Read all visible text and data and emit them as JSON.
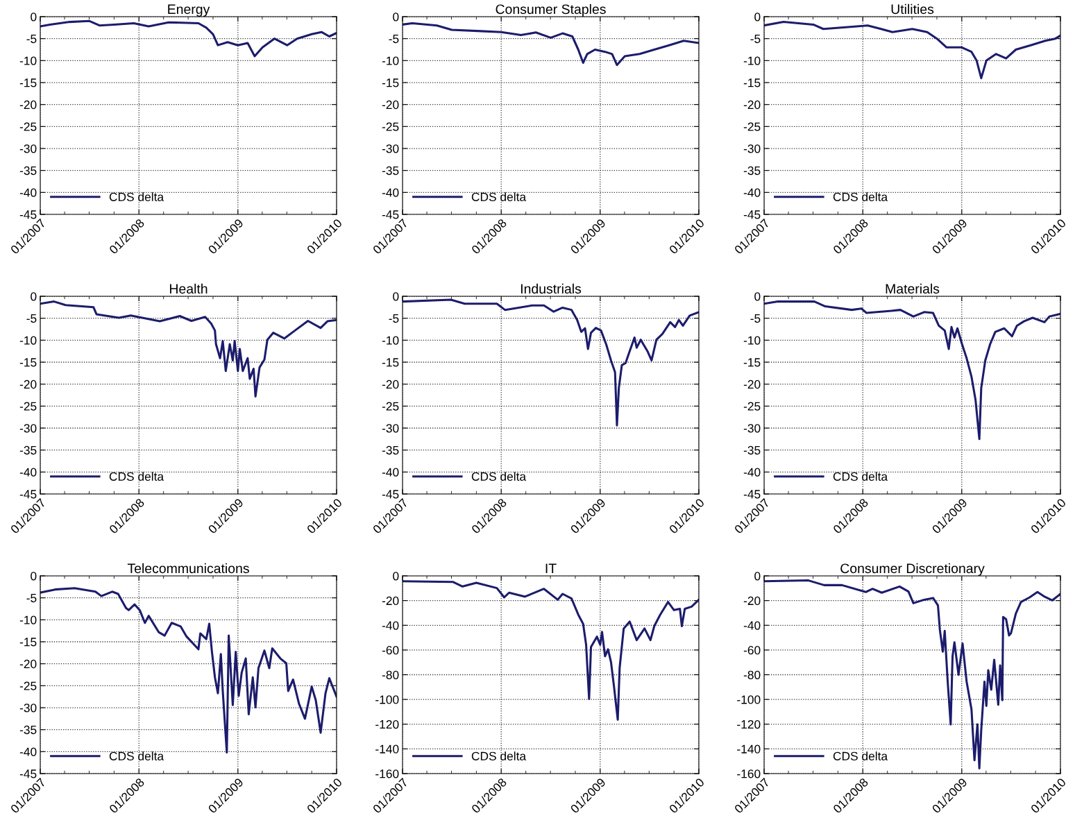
{
  "chart_data": [
    {
      "type": "line",
      "title": "Energy",
      "x": [
        "2007-01-01",
        "2007-02-06",
        "2007-04-20",
        "2007-07-02",
        "2007-08-08",
        "2007-10-01",
        "2007-12-13",
        "2008-02-06",
        "2008-04-20",
        "2008-08-08",
        "2008-09-06",
        "2008-10-01",
        "2008-10-19",
        "2008-11-24",
        "2009-01-01",
        "2009-02-06",
        "2009-03-04",
        "2009-04-02",
        "2009-05-16",
        "2009-07-02",
        "2009-08-08",
        "2009-10-01",
        "2009-11-06",
        "2009-12-05",
        "2010-01-01"
      ],
      "series": [
        {
          "name": "CDS delta",
          "color": "#1c1c6c",
          "values": [
            -2.2,
            -1.8,
            -1.2,
            -1.0,
            -2.0,
            -1.8,
            -1.5,
            -2.2,
            -1.3,
            -1.5,
            -2.5,
            -4.0,
            -6.5,
            -5.8,
            -6.5,
            -6.0,
            -9.0,
            -7.0,
            -5.0,
            -6.5,
            -5.0,
            -4.0,
            -3.5,
            -4.5,
            -3.7
          ]
        }
      ],
      "xlim": [
        "2007-01-01",
        "2010-01-01"
      ],
      "xticks": [
        {
          "value": "2007-01-01",
          "label": "01/2007"
        },
        {
          "value": "2007-04-01",
          "label": null
        },
        {
          "value": "2007-07-01",
          "label": null
        },
        {
          "value": "2007-10-01",
          "label": null
        },
        {
          "value": "2008-01-01",
          "label": "01/2008"
        },
        {
          "value": "2008-04-01",
          "label": null
        },
        {
          "value": "2008-07-01",
          "label": null
        },
        {
          "value": "2008-10-01",
          "label": null
        },
        {
          "value": "2009-01-01",
          "label": "01/2009"
        },
        {
          "value": "2009-04-01",
          "label": null
        },
        {
          "value": "2009-07-01",
          "label": null
        },
        {
          "value": "2009-10-01",
          "label": null
        },
        {
          "value": "2010-01-01",
          "label": "01/2010"
        }
      ],
      "ylim": [
        -45,
        0
      ],
      "yticks": [
        -45,
        -40,
        -35,
        -30,
        -25,
        -20,
        -15,
        -10,
        -5,
        0
      ],
      "grid": true,
      "legend": "bottom left"
    },
    {
      "type": "line",
      "title": "Consumer Staples",
      "x": [
        "2007-01-01",
        "2007-02-06",
        "2007-05-08",
        "2007-07-02",
        "2007-10-19",
        "2008-01-01",
        "2008-03-14",
        "2008-05-08",
        "2008-07-02",
        "2008-08-15",
        "2008-09-20",
        "2008-10-12",
        "2008-10-30",
        "2008-11-14",
        "2008-12-13",
        "2009-01-19",
        "2009-02-14",
        "2009-03-04",
        "2009-04-02",
        "2009-05-27",
        "2009-07-20",
        "2009-09-13",
        "2009-11-06",
        "2010-01-01"
      ],
      "series": [
        {
          "name": "CDS delta",
          "color": "#1c1c6c",
          "values": [
            -1.8,
            -1.5,
            -2.0,
            -3.0,
            -3.3,
            -3.5,
            -4.2,
            -3.6,
            -4.8,
            -3.8,
            -4.5,
            -7.5,
            -10.5,
            -8.5,
            -7.5,
            -8.0,
            -8.5,
            -11.0,
            -9.0,
            -8.5,
            -7.5,
            -6.5,
            -5.5,
            -6.0
          ]
        }
      ],
      "xlim": [
        "2007-01-01",
        "2010-01-01"
      ],
      "xticks": [
        {
          "value": "2007-01-01",
          "label": "01/2007"
        },
        {
          "value": "2007-04-01",
          "label": null
        },
        {
          "value": "2007-07-01",
          "label": null
        },
        {
          "value": "2007-10-01",
          "label": null
        },
        {
          "value": "2008-01-01",
          "label": "01/2008"
        },
        {
          "value": "2008-04-01",
          "label": null
        },
        {
          "value": "2008-07-01",
          "label": null
        },
        {
          "value": "2008-10-01",
          "label": null
        },
        {
          "value": "2009-01-01",
          "label": "01/2009"
        },
        {
          "value": "2009-04-01",
          "label": null
        },
        {
          "value": "2009-07-01",
          "label": null
        },
        {
          "value": "2009-10-01",
          "label": null
        },
        {
          "value": "2010-01-01",
          "label": "01/2010"
        }
      ],
      "ylim": [
        -45,
        0
      ],
      "yticks": [
        -45,
        -40,
        -35,
        -30,
        -25,
        -20,
        -15,
        -10,
        -5,
        0
      ],
      "grid": true,
      "legend": "bottom left"
    },
    {
      "type": "line",
      "title": "Utilities",
      "x": [
        "2007-01-01",
        "2007-03-14",
        "2007-07-02",
        "2007-08-08",
        "2007-11-24",
        "2008-01-19",
        "2008-04-20",
        "2008-07-02",
        "2008-08-26",
        "2008-10-01",
        "2008-11-06",
        "2009-01-01",
        "2009-02-06",
        "2009-02-25",
        "2009-03-14",
        "2009-04-02",
        "2009-05-08",
        "2009-06-14",
        "2009-07-20",
        "2009-09-13",
        "2009-11-06",
        "2009-12-13",
        "2010-01-01"
      ],
      "series": [
        {
          "name": "CDS delta",
          "color": "#1c1c6c",
          "values": [
            -2.0,
            -1.2,
            -1.8,
            -2.8,
            -2.3,
            -2.0,
            -3.5,
            -2.8,
            -3.5,
            -5.0,
            -7.0,
            -7.0,
            -8.0,
            -10.0,
            -14.0,
            -10.0,
            -8.5,
            -9.5,
            -7.5,
            -6.5,
            -5.5,
            -5.0,
            -4.3
          ]
        }
      ],
      "xlim": [
        "2007-01-01",
        "2010-01-01"
      ],
      "xticks": [
        {
          "value": "2007-01-01",
          "label": "01/2007"
        },
        {
          "value": "2007-04-01",
          "label": null
        },
        {
          "value": "2007-07-01",
          "label": null
        },
        {
          "value": "2007-10-01",
          "label": null
        },
        {
          "value": "2008-01-01",
          "label": "01/2008"
        },
        {
          "value": "2008-04-01",
          "label": null
        },
        {
          "value": "2008-07-01",
          "label": null
        },
        {
          "value": "2008-10-01",
          "label": null
        },
        {
          "value": "2009-01-01",
          "label": "01/2009"
        },
        {
          "value": "2009-04-01",
          "label": null
        },
        {
          "value": "2009-07-01",
          "label": null
        },
        {
          "value": "2009-10-01",
          "label": null
        },
        {
          "value": "2010-01-01",
          "label": "01/2010"
        }
      ],
      "ylim": [
        -45,
        0
      ],
      "yticks": [
        -45,
        -40,
        -35,
        -30,
        -25,
        -20,
        -15,
        -10,
        -5,
        0
      ],
      "grid": true,
      "legend": "bottom left"
    },
    {
      "type": "line",
      "title": "Health",
      "x": [
        "2007-01-01",
        "2007-02-21",
        "2007-04-05",
        "2007-07-17",
        "2007-07-28",
        "2007-10-19",
        "2007-12-02",
        "2008-03-18",
        "2008-05-31",
        "2008-07-13",
        "2008-09-02",
        "2008-09-24",
        "2008-10-08",
        "2008-10-12",
        "2008-10-27",
        "2008-11-06",
        "2008-11-17",
        "2008-12-02",
        "2008-12-13",
        "2008-12-20",
        "2009-01-01",
        "2009-01-08",
        "2009-01-19",
        "2009-02-06",
        "2009-02-14",
        "2009-02-28",
        "2009-03-07",
        "2009-03-22",
        "2009-04-09",
        "2009-04-20",
        "2009-05-12",
        "2009-06-22",
        "2009-07-31",
        "2009-09-17",
        "2009-11-03",
        "2009-11-28",
        "2010-01-01"
      ],
      "series": [
        {
          "name": "CDS delta",
          "color": "#1c1c6c",
          "values": [
            -1.7,
            -1.2,
            -2.0,
            -2.5,
            -4.1,
            -4.9,
            -4.4,
            -5.7,
            -4.5,
            -5.6,
            -4.7,
            -6.2,
            -7.8,
            -10.9,
            -14.1,
            -10.2,
            -17.0,
            -10.9,
            -14.6,
            -10.2,
            -17.0,
            -12.0,
            -17.0,
            -14.1,
            -18.8,
            -16.5,
            -22.8,
            -16.2,
            -14.4,
            -9.9,
            -8.3,
            -9.6,
            -7.8,
            -5.6,
            -7.2,
            -5.7,
            -5.4
          ]
        }
      ],
      "xlim": [
        "2007-01-01",
        "2010-01-01"
      ],
      "xticks": [
        {
          "value": "2007-01-01",
          "label": "01/2007"
        },
        {
          "value": "2007-04-01",
          "label": null
        },
        {
          "value": "2007-07-01",
          "label": null
        },
        {
          "value": "2007-10-01",
          "label": null
        },
        {
          "value": "2008-01-01",
          "label": "01/2008"
        },
        {
          "value": "2008-04-01",
          "label": null
        },
        {
          "value": "2008-07-01",
          "label": null
        },
        {
          "value": "2008-10-01",
          "label": null
        },
        {
          "value": "2009-01-01",
          "label": "01/2009"
        },
        {
          "value": "2009-04-01",
          "label": null
        },
        {
          "value": "2009-07-01",
          "label": null
        },
        {
          "value": "2009-10-01",
          "label": null
        },
        {
          "value": "2010-01-01",
          "label": "01/2010"
        }
      ],
      "ylim": [
        -45,
        0
      ],
      "yticks": [
        -45,
        -40,
        -35,
        -30,
        -25,
        -20,
        -15,
        -10,
        -5,
        0
      ],
      "grid": true,
      "legend": "bottom left"
    },
    {
      "type": "line",
      "title": "Industrials",
      "x": [
        "2007-01-01",
        "2007-06-29",
        "2007-08-19",
        "2007-12-16",
        "2008-01-15",
        "2008-04-24",
        "2008-06-07",
        "2008-07-13",
        "2008-08-15",
        "2008-09-17",
        "2008-10-08",
        "2008-10-23",
        "2008-11-06",
        "2008-11-17",
        "2008-11-28",
        "2008-12-16",
        "2009-01-04",
        "2009-01-23",
        "2009-02-10",
        "2009-02-25",
        "2009-03-04",
        "2009-03-11",
        "2009-03-22",
        "2009-04-05",
        "2009-04-20",
        "2009-05-08",
        "2009-05-16",
        "2009-05-31",
        "2009-06-25",
        "2009-07-10",
        "2009-07-28",
        "2009-08-19",
        "2009-09-17",
        "2009-10-05",
        "2009-10-19",
        "2009-11-03",
        "2009-11-28",
        "2010-01-01"
      ],
      "series": [
        {
          "name": "CDS delta",
          "color": "#1c1c6c",
          "values": [
            -1.2,
            -0.8,
            -1.7,
            -1.7,
            -3.1,
            -2.1,
            -2.1,
            -3.5,
            -2.6,
            -3.1,
            -5.4,
            -8.1,
            -7.3,
            -12.0,
            -8.3,
            -7.2,
            -7.8,
            -10.9,
            -14.6,
            -17.3,
            -29.4,
            -20.9,
            -15.7,
            -15.2,
            -12.5,
            -9.4,
            -11.7,
            -9.9,
            -12.5,
            -14.6,
            -9.9,
            -8.6,
            -5.9,
            -7.0,
            -5.4,
            -6.7,
            -4.4,
            -3.6
          ]
        }
      ],
      "xlim": [
        "2007-01-01",
        "2010-01-01"
      ],
      "xticks": [
        {
          "value": "2007-01-01",
          "label": "01/2007"
        },
        {
          "value": "2007-04-01",
          "label": null
        },
        {
          "value": "2007-07-01",
          "label": null
        },
        {
          "value": "2007-10-01",
          "label": null
        },
        {
          "value": "2008-01-01",
          "label": "01/2008"
        },
        {
          "value": "2008-04-01",
          "label": null
        },
        {
          "value": "2008-07-01",
          "label": null
        },
        {
          "value": "2008-10-01",
          "label": null
        },
        {
          "value": "2009-01-01",
          "label": "01/2009"
        },
        {
          "value": "2009-04-01",
          "label": null
        },
        {
          "value": "2009-07-01",
          "label": null
        },
        {
          "value": "2009-10-01",
          "label": null
        },
        {
          "value": "2010-01-01",
          "label": "01/2010"
        }
      ],
      "ylim": [
        -45,
        0
      ],
      "yticks": [
        -45,
        -40,
        -35,
        -30,
        -25,
        -20,
        -15,
        -10,
        -5,
        0
      ],
      "grid": true,
      "legend": "bottom left"
    },
    {
      "type": "line",
      "title": "Materials",
      "x": [
        "2007-01-01",
        "2007-02-21",
        "2007-07-06",
        "2007-08-15",
        "2007-11-21",
        "2007-12-27",
        "2008-01-15",
        "2008-04-16",
        "2008-05-19",
        "2008-07-06",
        "2008-08-15",
        "2008-09-17",
        "2008-10-08",
        "2008-10-30",
        "2008-11-14",
        "2008-11-24",
        "2008-12-05",
        "2008-12-16",
        "2009-01-01",
        "2009-01-19",
        "2009-02-06",
        "2009-02-21",
        "2009-03-07",
        "2009-03-14",
        "2009-03-29",
        "2009-04-16",
        "2009-05-05",
        "2009-06-07",
        "2009-07-06",
        "2009-07-24",
        "2009-08-19",
        "2009-09-20",
        "2009-11-03",
        "2009-11-21",
        "2010-01-01"
      ],
      "series": [
        {
          "name": "CDS delta",
          "color": "#1c1c6c",
          "values": [
            -1.7,
            -1.2,
            -1.2,
            -2.3,
            -3.1,
            -2.8,
            -3.8,
            -3.3,
            -3.1,
            -4.6,
            -3.6,
            -3.8,
            -6.7,
            -7.8,
            -12.0,
            -7.0,
            -9.4,
            -7.3,
            -10.7,
            -14.1,
            -18.3,
            -23.6,
            -32.5,
            -20.9,
            -14.6,
            -10.9,
            -8.1,
            -7.3,
            -9.1,
            -6.7,
            -5.7,
            -4.9,
            -5.9,
            -4.6,
            -4.0
          ]
        }
      ],
      "xlim": [
        "2007-01-01",
        "2010-01-01"
      ],
      "xticks": [
        {
          "value": "2007-01-01",
          "label": "01/2007"
        },
        {
          "value": "2007-04-01",
          "label": null
        },
        {
          "value": "2007-07-01",
          "label": null
        },
        {
          "value": "2007-10-01",
          "label": null
        },
        {
          "value": "2008-01-01",
          "label": "01/2008"
        },
        {
          "value": "2008-04-01",
          "label": null
        },
        {
          "value": "2008-07-01",
          "label": null
        },
        {
          "value": "2008-10-01",
          "label": null
        },
        {
          "value": "2009-01-01",
          "label": "01/2009"
        },
        {
          "value": "2009-04-01",
          "label": null
        },
        {
          "value": "2009-07-01",
          "label": null
        },
        {
          "value": "2009-10-01",
          "label": null
        },
        {
          "value": "2010-01-01",
          "label": "01/2010"
        }
      ],
      "ylim": [
        -45,
        0
      ],
      "yticks": [
        -45,
        -40,
        -35,
        -30,
        -25,
        -20,
        -15,
        -10,
        -5,
        0
      ],
      "grid": true,
      "legend": "bottom left"
    },
    {
      "type": "line",
      "title": "Telecommunications",
      "x": [
        "2007-01-01",
        "2007-02-25",
        "2007-05-08",
        "2007-07-24",
        "2007-08-15",
        "2007-09-24",
        "2007-10-16",
        "2007-11-14",
        "2007-11-24",
        "2007-12-16",
        "2008-01-04",
        "2008-01-23",
        "2008-02-06",
        "2008-03-14",
        "2008-04-05",
        "2008-05-01",
        "2008-06-03",
        "2008-06-25",
        "2008-08-08",
        "2008-08-15",
        "2008-09-06",
        "2008-09-17",
        "2008-09-27",
        "2008-10-08",
        "2008-10-19",
        "2008-10-30",
        "2008-11-06",
        "2008-11-21",
        "2008-11-28",
        "2008-12-13",
        "2008-12-24",
        "2009-01-04",
        "2009-01-15",
        "2009-01-30",
        "2009-02-10",
        "2009-02-25",
        "2009-03-07",
        "2009-03-18",
        "2009-04-09",
        "2009-04-27",
        "2009-05-08",
        "2009-06-07",
        "2009-06-29",
        "2009-07-06",
        "2009-07-24",
        "2009-08-15",
        "2009-09-06",
        "2009-10-01",
        "2009-10-16",
        "2009-11-03",
        "2009-11-21",
        "2009-12-05",
        "2010-01-01"
      ],
      "series": [
        {
          "name": "CDS delta",
          "color": "#1c1c6c",
          "values": [
            -3.8,
            -3.1,
            -2.8,
            -3.6,
            -4.6,
            -3.6,
            -4.1,
            -7.3,
            -7.8,
            -6.5,
            -7.8,
            -10.7,
            -9.1,
            -12.8,
            -13.6,
            -10.7,
            -11.5,
            -13.8,
            -16.7,
            -13.1,
            -14.4,
            -10.9,
            -17.3,
            -23.1,
            -26.7,
            -17.8,
            -26.2,
            -40.2,
            -13.6,
            -29.4,
            -17.3,
            -27.3,
            -22.0,
            -18.8,
            -31.5,
            -23.1,
            -29.9,
            -21.0,
            -17.0,
            -21.0,
            -16.5,
            -18.8,
            -19.9,
            -26.2,
            -23.6,
            -29.1,
            -32.5,
            -25.2,
            -28.3,
            -35.7,
            -26.7,
            -23.3,
            -27.5
          ]
        }
      ],
      "xlim": [
        "2007-01-01",
        "2010-01-01"
      ],
      "xticks": [
        {
          "value": "2007-01-01",
          "label": "01/2007"
        },
        {
          "value": "2007-04-01",
          "label": null
        },
        {
          "value": "2007-07-01",
          "label": null
        },
        {
          "value": "2007-10-01",
          "label": null
        },
        {
          "value": "2008-01-01",
          "label": "01/2008"
        },
        {
          "value": "2008-04-01",
          "label": null
        },
        {
          "value": "2008-07-01",
          "label": null
        },
        {
          "value": "2008-10-01",
          "label": null
        },
        {
          "value": "2009-01-01",
          "label": "01/2009"
        },
        {
          "value": "2009-04-01",
          "label": null
        },
        {
          "value": "2009-07-01",
          "label": null
        },
        {
          "value": "2009-10-01",
          "label": null
        },
        {
          "value": "2010-01-01",
          "label": "01/2010"
        }
      ],
      "ylim": [
        -45,
        0
      ],
      "yticks": [
        -45,
        -40,
        -35,
        -30,
        -25,
        -20,
        -15,
        -10,
        -5,
        0
      ],
      "grid": true,
      "legend": "bottom left"
    },
    {
      "type": "line",
      "title": "IT",
      "x": [
        "2007-01-01",
        "2007-07-06",
        "2007-08-11",
        "2007-10-01",
        "2007-12-16",
        "2008-01-12",
        "2008-01-30",
        "2008-03-29",
        "2008-06-07",
        "2008-07-28",
        "2008-08-15",
        "2008-09-17",
        "2008-10-12",
        "2008-10-30",
        "2008-11-10",
        "2008-11-21",
        "2008-11-28",
        "2008-12-20",
        "2009-01-01",
        "2009-01-08",
        "2009-01-19",
        "2009-01-30",
        "2009-02-10",
        "2009-02-21",
        "2009-03-07",
        "2009-03-14",
        "2009-03-29",
        "2009-04-20",
        "2009-05-16",
        "2009-06-14",
        "2009-07-06",
        "2009-07-20",
        "2009-08-11",
        "2009-09-09",
        "2009-10-01",
        "2009-10-23",
        "2009-10-30",
        "2009-11-10",
        "2009-12-05",
        "2010-01-01"
      ],
      "series": [
        {
          "name": "CDS delta",
          "color": "#1c1c6c",
          "values": [
            -4.3,
            -4.9,
            -8.6,
            -5.6,
            -9.9,
            -17.4,
            -13.6,
            -16.8,
            -10.5,
            -19.3,
            -14.6,
            -18.3,
            -31.4,
            -38.9,
            -55.7,
            -99.6,
            -57.6,
            -49.2,
            -55.7,
            -45.4,
            -65.0,
            -59.4,
            -69.7,
            -89.3,
            -116.4,
            -74.4,
            -42.6,
            -37.0,
            -52.0,
            -42.6,
            -52.0,
            -40.7,
            -31.4,
            -21.1,
            -27.7,
            -26.7,
            -40.7,
            -26.7,
            -24.9,
            -19.3
          ]
        }
      ],
      "xlim": [
        "2007-01-01",
        "2010-01-01"
      ],
      "xticks": [
        {
          "value": "2007-01-01",
          "label": "01/2007"
        },
        {
          "value": "2007-04-01",
          "label": null
        },
        {
          "value": "2007-07-01",
          "label": null
        },
        {
          "value": "2007-10-01",
          "label": null
        },
        {
          "value": "2008-01-01",
          "label": "01/2008"
        },
        {
          "value": "2008-04-01",
          "label": null
        },
        {
          "value": "2008-07-01",
          "label": null
        },
        {
          "value": "2008-10-01",
          "label": null
        },
        {
          "value": "2009-01-01",
          "label": "01/2009"
        },
        {
          "value": "2009-04-01",
          "label": null
        },
        {
          "value": "2009-07-01",
          "label": null
        },
        {
          "value": "2009-10-01",
          "label": null
        },
        {
          "value": "2010-01-01",
          "label": "01/2010"
        }
      ],
      "ylim": [
        -160,
        0
      ],
      "yticks": [
        -160,
        -140,
        -120,
        -100,
        -80,
        -60,
        -40,
        -20,
        0
      ],
      "grid": true,
      "legend": "bottom left"
    },
    {
      "type": "line",
      "title": "Consumer Discretionary",
      "x": [
        "2007-01-01",
        "2007-06-14",
        "2007-08-11",
        "2007-10-16",
        "2008-01-12",
        "2008-02-06",
        "2008-03-11",
        "2008-05-16",
        "2008-06-18",
        "2008-07-06",
        "2008-08-15",
        "2008-09-17",
        "2008-10-05",
        "2008-10-12",
        "2008-10-23",
        "2008-10-30",
        "2008-11-10",
        "2008-11-21",
        "2008-11-28",
        "2008-12-05",
        "2008-12-20",
        "2009-01-04",
        "2009-01-19",
        "2009-02-06",
        "2009-02-17",
        "2009-02-28",
        "2009-03-07",
        "2009-03-14",
        "2009-03-26",
        "2009-04-02",
        "2009-04-09",
        "2009-04-20",
        "2009-05-01",
        "2009-05-16",
        "2009-05-23",
        "2009-05-31",
        "2009-06-03",
        "2009-06-14",
        "2009-06-25",
        "2009-07-02",
        "2009-07-20",
        "2009-08-08",
        "2009-09-09",
        "2009-10-08",
        "2009-11-03",
        "2009-12-02",
        "2010-01-01"
      ],
      "series": [
        {
          "name": "CDS delta",
          "color": "#1c1c6c",
          "values": [
            -4.3,
            -3.7,
            -7.5,
            -7.5,
            -13.1,
            -10.5,
            -13.6,
            -8.6,
            -12.7,
            -22.1,
            -19.3,
            -17.9,
            -23.9,
            -43.6,
            -61.3,
            -44.5,
            -85.6,
            -120.2,
            -65.0,
            -53.8,
            -80.0,
            -54.8,
            -85.6,
            -108.0,
            -149.2,
            -120.2,
            -155.8,
            -124.9,
            -85.6,
            -105.2,
            -76.3,
            -92.1,
            -67.9,
            -104.3,
            -72.5,
            -100.6,
            -33.3,
            -35.1,
            -48.2,
            -46.4,
            -30.5,
            -21.1,
            -17.4,
            -13.1,
            -16.8,
            -19.8,
            -14.6
          ]
        }
      ],
      "xlim": [
        "2007-01-01",
        "2010-01-01"
      ],
      "xticks": [
        {
          "value": "2007-01-01",
          "label": "01/2007"
        },
        {
          "value": "2007-04-01",
          "label": null
        },
        {
          "value": "2007-07-01",
          "label": null
        },
        {
          "value": "2007-10-01",
          "label": null
        },
        {
          "value": "2008-01-01",
          "label": "01/2008"
        },
        {
          "value": "2008-04-01",
          "label": null
        },
        {
          "value": "2008-07-01",
          "label": null
        },
        {
          "value": "2008-10-01",
          "label": null
        },
        {
          "value": "2009-01-01",
          "label": "01/2009"
        },
        {
          "value": "2009-04-01",
          "label": null
        },
        {
          "value": "2009-07-01",
          "label": null
        },
        {
          "value": "2009-10-01",
          "label": null
        },
        {
          "value": "2010-01-01",
          "label": "01/2010"
        }
      ],
      "ylim": [
        -160,
        0
      ],
      "yticks": [
        -160,
        -140,
        -120,
        -100,
        -80,
        -60,
        -40,
        -20,
        0
      ],
      "grid": true,
      "legend": "bottom left"
    }
  ]
}
